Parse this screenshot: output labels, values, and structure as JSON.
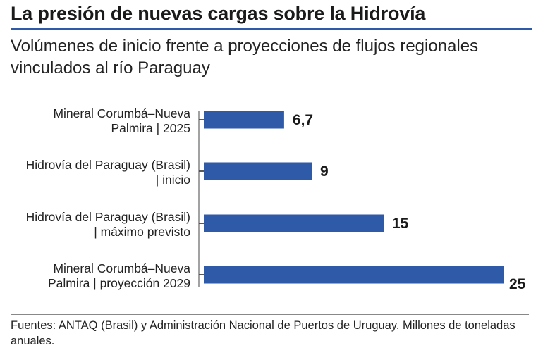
{
  "title": "La presión de nuevas cargas sobre la Hidrovía",
  "subtitle": "Volúmenes de inicio frente a proyecciones de flujos regionales vinculados al río Paraguay",
  "source": "Fuentes: ANTAQ (Brasil) y Administración Nacional de Puertos de Uruguay. Millones de toneladas anuales.",
  "colors": {
    "bar": "#2f5aa8",
    "rule": "#2f5aa8"
  },
  "chart_data": {
    "type": "bar",
    "orientation": "horizontal",
    "categories": [
      [
        "Mineral Corumbá–Nueva",
        "Palmira | 2025"
      ],
      [
        "Hidrovía del Paraguay (Brasil)",
        "| inicio"
      ],
      [
        "Hidrovía del Paraguay (Brasil)",
        "| máximo previsto"
      ],
      [
        "Mineral Corumbá–Nueva",
        "Palmira | proyección 2029"
      ]
    ],
    "values": [
      6.7,
      9,
      15,
      25
    ],
    "value_labels": [
      "6,7",
      "9",
      "15",
      "25"
    ],
    "xlim": [
      0,
      25
    ],
    "grid": false,
    "legend": "none"
  }
}
